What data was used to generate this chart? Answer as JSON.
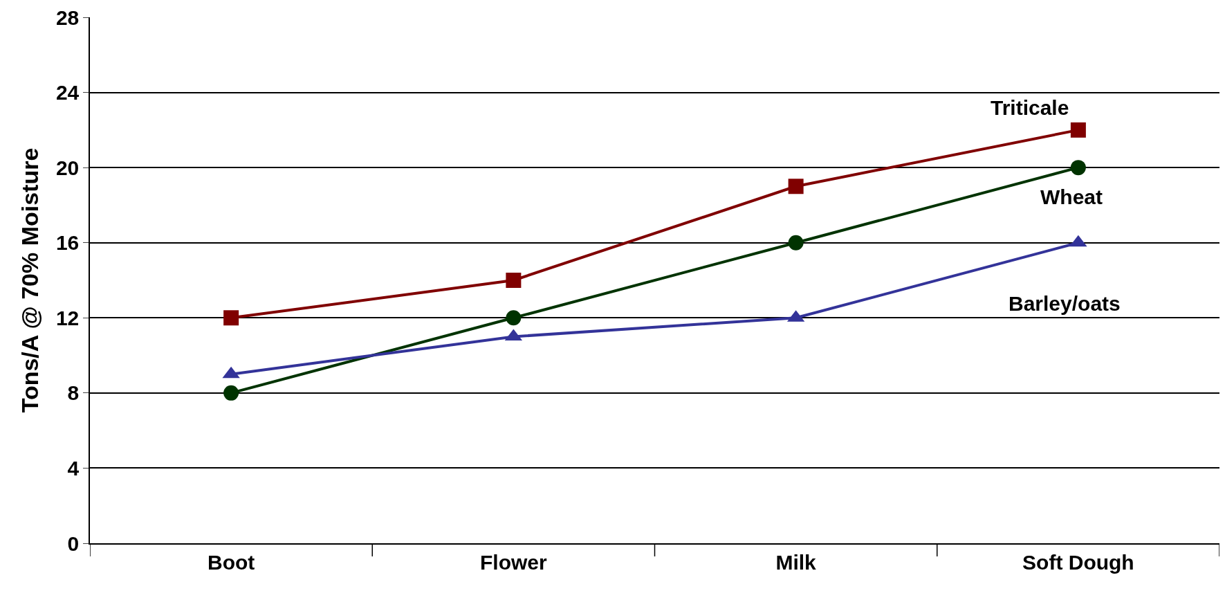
{
  "chart_data": {
    "type": "line",
    "ylabel": "Tons/A @ 70% Moisture",
    "categories": [
      "Boot",
      "Flower",
      "Milk",
      "Soft Dough"
    ],
    "series": [
      {
        "name": "Triticale",
        "color": "#800000",
        "marker": "square",
        "values": [
          12,
          14,
          19,
          22
        ]
      },
      {
        "name": "Wheat",
        "color": "#003300",
        "marker": "circle",
        "values": [
          8,
          12,
          16,
          20
        ]
      },
      {
        "name": "Barley/oats",
        "color": "#333399",
        "marker": "triangle",
        "values": [
          9,
          11,
          12,
          16
        ]
      }
    ],
    "ylim": [
      0,
      28
    ],
    "yticks": [
      0,
      4,
      8,
      12,
      16,
      20,
      24,
      28
    ],
    "grid": "y",
    "legend": false
  }
}
